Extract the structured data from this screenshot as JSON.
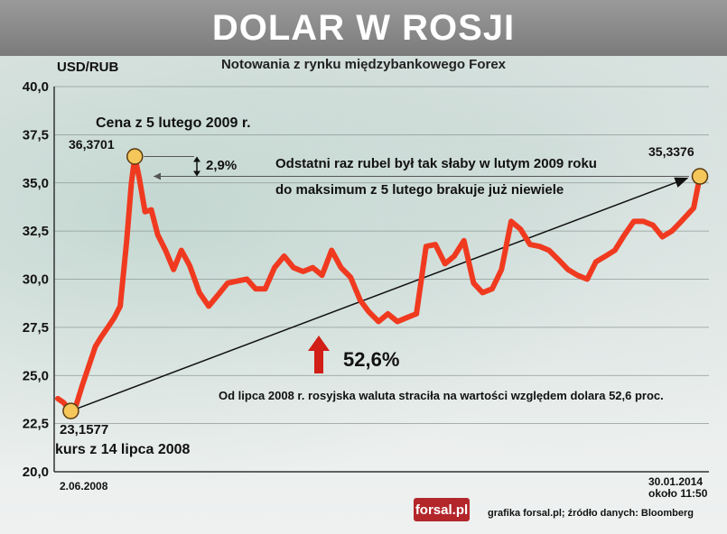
{
  "title": "DOLAR W ROSJI",
  "subtitle": "Notowania z rynku międzybankowego Forex",
  "colors": {
    "line": "#f03a20",
    "title_bg": "#8a8a8a",
    "marker": "#f5c65a",
    "arrow": "#d11e16"
  },
  "annotations": {
    "peak_label": "Cena z 5 lutego 2009 r.",
    "peak_value": "36,3701",
    "gap_pct": "2,9%",
    "last_value": "35,3376",
    "weak_line1": "Odstatni raz rubel był tak słaby w lutym 2009 roku",
    "weak_line2": "do maksimum z 5 lutego brakuje już niewiele",
    "start_value": "23,1577",
    "start_label": "kurs z 14 lipca 2008",
    "rise_pct": "52,6%",
    "loss_text": "Od lipca 2008 r. rosyjska waluta straciła na wartości względem dolara 52,6 proc."
  },
  "footer": {
    "logo": "forsal.pl",
    "source": "grafika forsal.pl;  źródło danych: Bloomberg"
  },
  "chart_data": {
    "type": "line",
    "ylabel": "USD/RUB",
    "ylim": [
      20,
      40
    ],
    "yticks": [
      "20,0",
      "22,5",
      "25,0",
      "27,5",
      "30,0",
      "32,5",
      "35,0",
      "37,5",
      "40,0"
    ],
    "x_start_label": "2.06.2008",
    "x_end_label": [
      "30.01.2014",
      "około 11:50"
    ],
    "grid": true,
    "series": [
      {
        "x": [
          "2008-06-02",
          "2008-06-20",
          "2008-07-14",
          "2008-08-01",
          "2008-08-20",
          "2008-09-10",
          "2008-10-01",
          "2008-10-20",
          "2008-11-10",
          "2008-12-01",
          "2008-12-20",
          "2009-01-10",
          "2009-01-25",
          "2009-02-05",
          "2009-02-20",
          "2009-03-10",
          "2009-03-30",
          "2009-04-20",
          "2009-05-15",
          "2009-06-10",
          "2009-07-05",
          "2009-08-01",
          "2009-09-01",
          "2009-10-01",
          "2009-11-01",
          "2009-12-01",
          "2010-01-01",
          "2010-02-01",
          "2010-03-01",
          "2010-04-01",
          "2010-05-01",
          "2010-06-01",
          "2010-07-01",
          "2010-08-01",
          "2010-09-01",
          "2010-10-01",
          "2010-11-01",
          "2010-12-01",
          "2011-01-01",
          "2011-02-01",
          "2011-03-01",
          "2011-04-01",
          "2011-05-01",
          "2011-06-01",
          "2011-07-01",
          "2011-08-01",
          "2011-09-01",
          "2011-10-01",
          "2011-11-01",
          "2011-12-01",
          "2012-01-01",
          "2012-02-01",
          "2012-03-01",
          "2012-04-01",
          "2012-05-01",
          "2012-06-01",
          "2012-07-01",
          "2012-08-01",
          "2012-09-01",
          "2012-10-01",
          "2012-11-01",
          "2012-12-01",
          "2013-01-01",
          "2013-02-01",
          "2013-03-01",
          "2013-04-01",
          "2013-05-01",
          "2013-06-01",
          "2013-07-01",
          "2013-08-01",
          "2013-09-01",
          "2013-10-01",
          "2013-11-01",
          "2013-12-01",
          "2014-01-10",
          "2014-01-30"
        ],
        "values": [
          23.8,
          23.6,
          23.16,
          23.5,
          24.5,
          25.5,
          26.5,
          27.0,
          27.5,
          28.0,
          28.6,
          32.0,
          35.0,
          36.37,
          35.2,
          33.5,
          33.6,
          32.3,
          31.5,
          30.5,
          31.5,
          30.7,
          29.3,
          28.6,
          29.2,
          29.8,
          29.9,
          30.0,
          29.5,
          29.5,
          30.6,
          31.2,
          30.6,
          30.4,
          30.6,
          30.2,
          31.5,
          30.6,
          30.1,
          28.9,
          28.3,
          27.8,
          28.2,
          27.8,
          28.0,
          28.2,
          31.7,
          31.8,
          30.8,
          31.2,
          32.0,
          29.8,
          29.3,
          29.5,
          30.5,
          33.0,
          32.6,
          31.8,
          31.7,
          31.5,
          31.0,
          30.5,
          30.2,
          30.0,
          30.9,
          31.2,
          31.5,
          32.3,
          33.0,
          33.0,
          32.8,
          32.2,
          32.5,
          33.0,
          33.7,
          35.34
        ]
      }
    ],
    "markers": [
      {
        "x": "2008-07-14",
        "y": 23.1577
      },
      {
        "x": "2009-02-05",
        "y": 36.3701
      },
      {
        "x": "2014-01-30",
        "y": 35.3376
      }
    ]
  }
}
